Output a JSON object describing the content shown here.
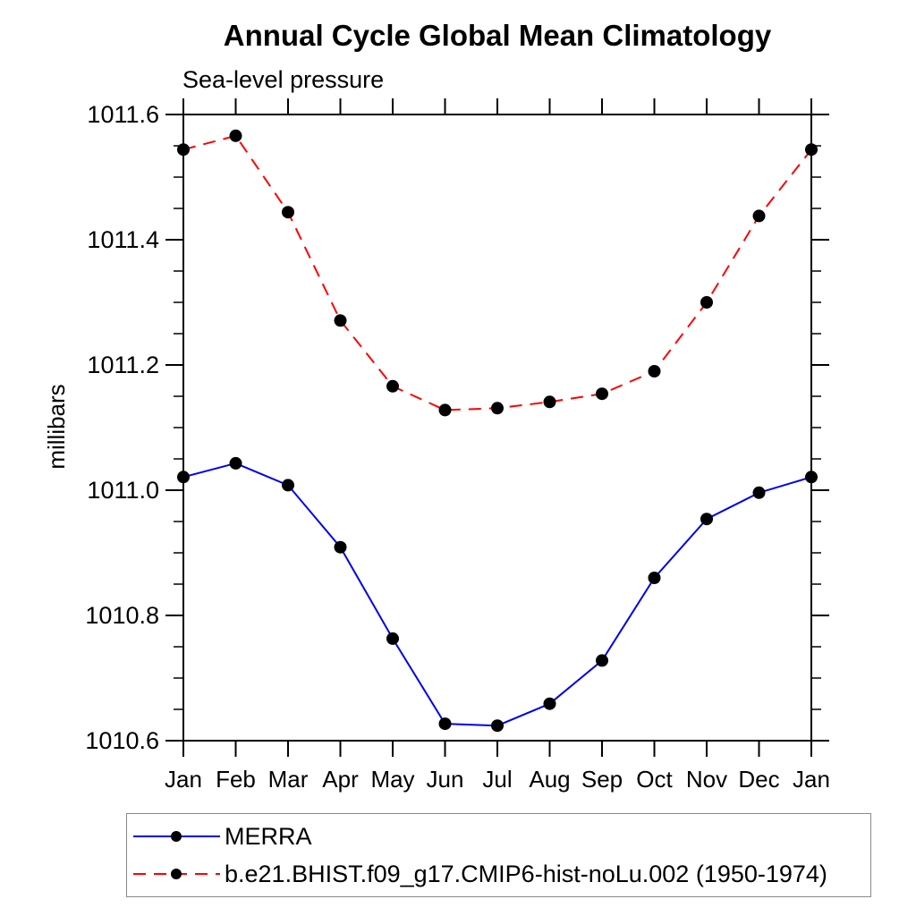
{
  "chart_data": {
    "type": "line",
    "title": "Annual Cycle Global Mean Climatology",
    "subtitle": "Sea-level pressure",
    "ylabel": "millibars",
    "categories": [
      "Jan",
      "Feb",
      "Mar",
      "Apr",
      "May",
      "Jun",
      "Jul",
      "Aug",
      "Sep",
      "Oct",
      "Nov",
      "Dec",
      "Jan"
    ],
    "series": [
      {
        "name": "MERRA",
        "color": "#0000ee",
        "line_style": "solid",
        "marker": "filled-circle",
        "marker_color": "#000000",
        "values": [
          1011.021,
          1011.043,
          1011.008,
          1010.909,
          1010.763,
          1010.627,
          1010.624,
          1010.659,
          1010.728,
          1010.86,
          1010.954,
          1010.996,
          1011.021
        ]
      },
      {
        "name": "b.e21.BHIST.f09_g17.CMIP6-hist-noLu.002 (1950-1974)",
        "color": "#ff0000",
        "line_style": "dashed",
        "marker": "filled-circle",
        "marker_color": "#000000",
        "values": [
          1011.544,
          1011.566,
          1011.444,
          1011.271,
          1011.166,
          1011.128,
          1011.131,
          1011.141,
          1011.154,
          1011.19,
          1011.3,
          1011.438,
          1011.544
        ]
      }
    ],
    "ylim": [
      1010.6,
      1011.6
    ],
    "y_major_ticks": [
      1011.6,
      1011.4,
      1011.2,
      1011.0,
      1010.8,
      1010.6
    ],
    "y_minor_step": 0.05,
    "y_tick_decimals": 1,
    "grid": false,
    "legend_position": "bottom-left",
    "axis_color": "#000000"
  }
}
